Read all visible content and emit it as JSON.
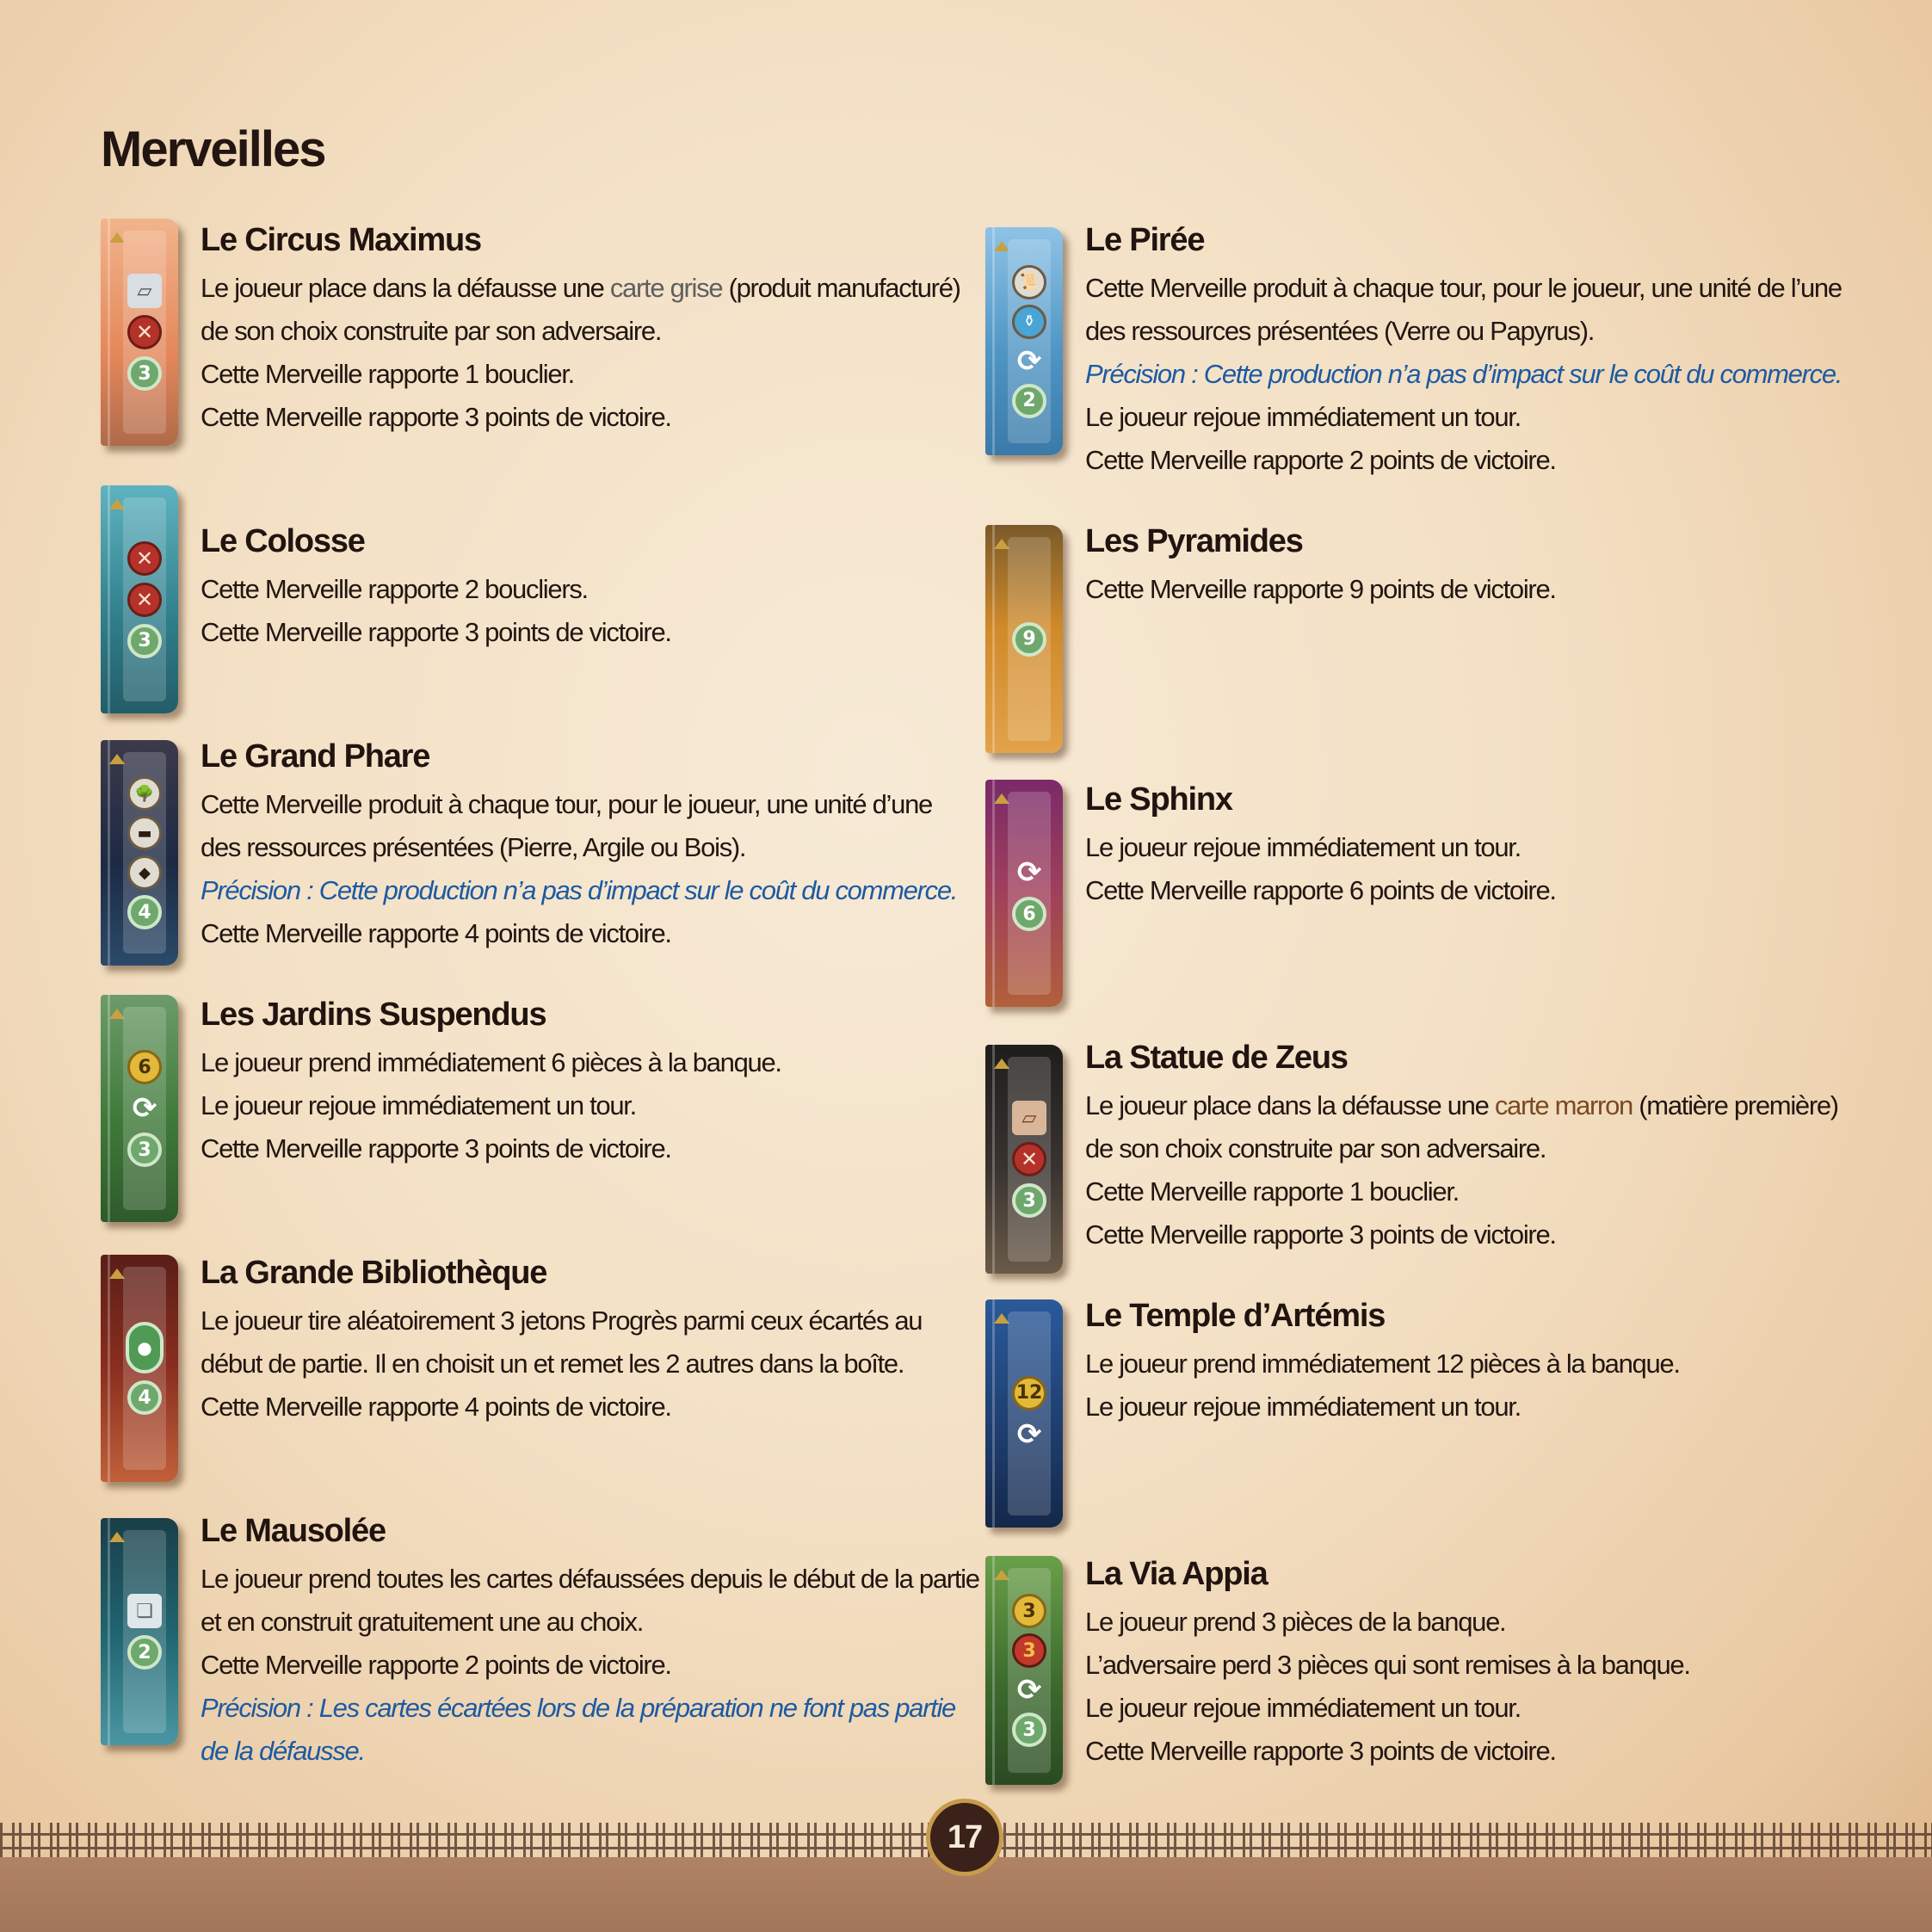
{
  "page": {
    "title": "Merveilles",
    "page_number": "17"
  },
  "left": [
    {
      "name": "Le Circus Maximus",
      "line1_before": "Le joueur place dans la défausse une ",
      "line1_highlight": "carte grise",
      "line1_after": " (produit manufacturé)",
      "line2": "de son choix construite par son adversaire.",
      "line3": "Cette Merveille rapporte 1 bouclier.",
      "line4": "Cette Merveille rapporte 3 points de victoire.",
      "icons": [
        "grey-card",
        "shield",
        "3"
      ],
      "card_color": "#e79a6a"
    },
    {
      "name": "Le Colosse",
      "line1": "Cette Merveille rapporte 2 boucliers.",
      "line2": "Cette Merveille rapporte 3 points de victoire.",
      "icons": [
        "shield",
        "shield",
        "3"
      ],
      "card_color": "#3f8f9a"
    },
    {
      "name": "Le Grand Phare",
      "line1": "Cette Merveille produit à chaque tour, pour le joueur, une unité d’une",
      "line2": "des ressources présentées (Pierre, Argile ou Bois).",
      "note": "Précision : Cette production n’a pas d’impact sur le coût du commerce.",
      "line3": "Cette Merveille rapporte 4 points de victoire.",
      "icons": [
        "wood",
        "stone",
        "clay",
        "4"
      ],
      "card_color": "#22304a"
    },
    {
      "name": "Les Jardins Suspendus",
      "line1": "Le joueur prend immédiatement 6 pièces à la banque.",
      "line2": "Le joueur rejoue immédiatement un tour.",
      "line3": "Cette Merveille rapporte 3 points de victoire.",
      "icons": [
        "6",
        "again",
        "3"
      ],
      "card_color": "#3f7a3a"
    },
    {
      "name": "La Grande Bibliothèque",
      "line1": "Le joueur tire aléatoirement 3 jetons Progrès parmi ceux écartés au",
      "line2": "début de partie. Il en choisit un et remet les 2 autres dans la boîte.",
      "line3": "Cette Merveille rapporte 4 points de victoire.",
      "icons": [
        "tokens",
        "4"
      ],
      "card_color": "#7a2a1e"
    },
    {
      "name": "Le Mausolée",
      "line1": "Le joueur prend toutes les cartes défaussées depuis le début de la partie",
      "line2": "et en construit gratuitement une au choix.",
      "line3": "Cette Merveille rapporte 2 points de victoire.",
      "note1": "Précision : Les cartes écartées lors de la préparation ne font pas partie",
      "note2": "de la défausse.",
      "icons": [
        "discard",
        "2"
      ],
      "card_color": "#1f6470"
    }
  ],
  "right": [
    {
      "name": "Le Pirée",
      "line1": "Cette Merveille produit à chaque tour, pour le joueur, une unité de l’une",
      "line2": "des ressources présentées (Verre ou Papyrus).",
      "note": "Précision : Cette production n’a pas d’impact sur le coût du commerce.",
      "line3": "Le joueur rejoue immédiatement un tour.",
      "line4": "Cette Merveille rapporte 2 points de victoire.",
      "icons": [
        "papyrus",
        "glass",
        "again",
        "2"
      ],
      "card_color": "#4f95c4"
    },
    {
      "name": "Les Pyramides",
      "line1": "Cette Merveille rapporte 9 points de victoire.",
      "icons": [
        "9"
      ],
      "card_color": "#d08a2a"
    },
    {
      "name": "Le Sphinx",
      "line1": "Le joueur rejoue immédiatement un tour.",
      "line2": "Cette Merveille rapporte 6 points de victoire.",
      "icons": [
        "again",
        "6"
      ],
      "card_color": "#8a2f5a"
    },
    {
      "name": "La Statue de Zeus",
      "line1_before": "Le joueur place dans la défausse une ",
      "line1_highlight": "carte marron",
      "line1_after": " (matière première)",
      "line2": "de son choix construite par son adversaire.",
      "line3": "Cette Merveille rapporte 1 bouclier.",
      "line4": "Cette Merveille rapporte 3 points de victoire.",
      "icons": [
        "brown-card",
        "shield",
        "3"
      ],
      "card_color": "#2e2a28"
    },
    {
      "name": "Le Temple d’Artémis",
      "line1": "Le joueur prend immédiatement 12 pièces à la banque.",
      "line2": "Le joueur rejoue immédiatement un tour.",
      "icons": [
        "12",
        "again"
      ],
      "card_color": "#1f3f70"
    },
    {
      "name": "La Via Appia",
      "line1": "Le joueur prend 3 pièces de la banque.",
      "line2": "L’adversaire perd 3 pièces qui sont remises à la banque.",
      "line3": "Le joueur rejoue immédiatement un tour.",
      "line4": "Cette Merveille rapporte 3 points de victoire.",
      "icons": [
        "3",
        "-3",
        "again",
        "3"
      ],
      "card_color": "#3d6b2e"
    }
  ]
}
